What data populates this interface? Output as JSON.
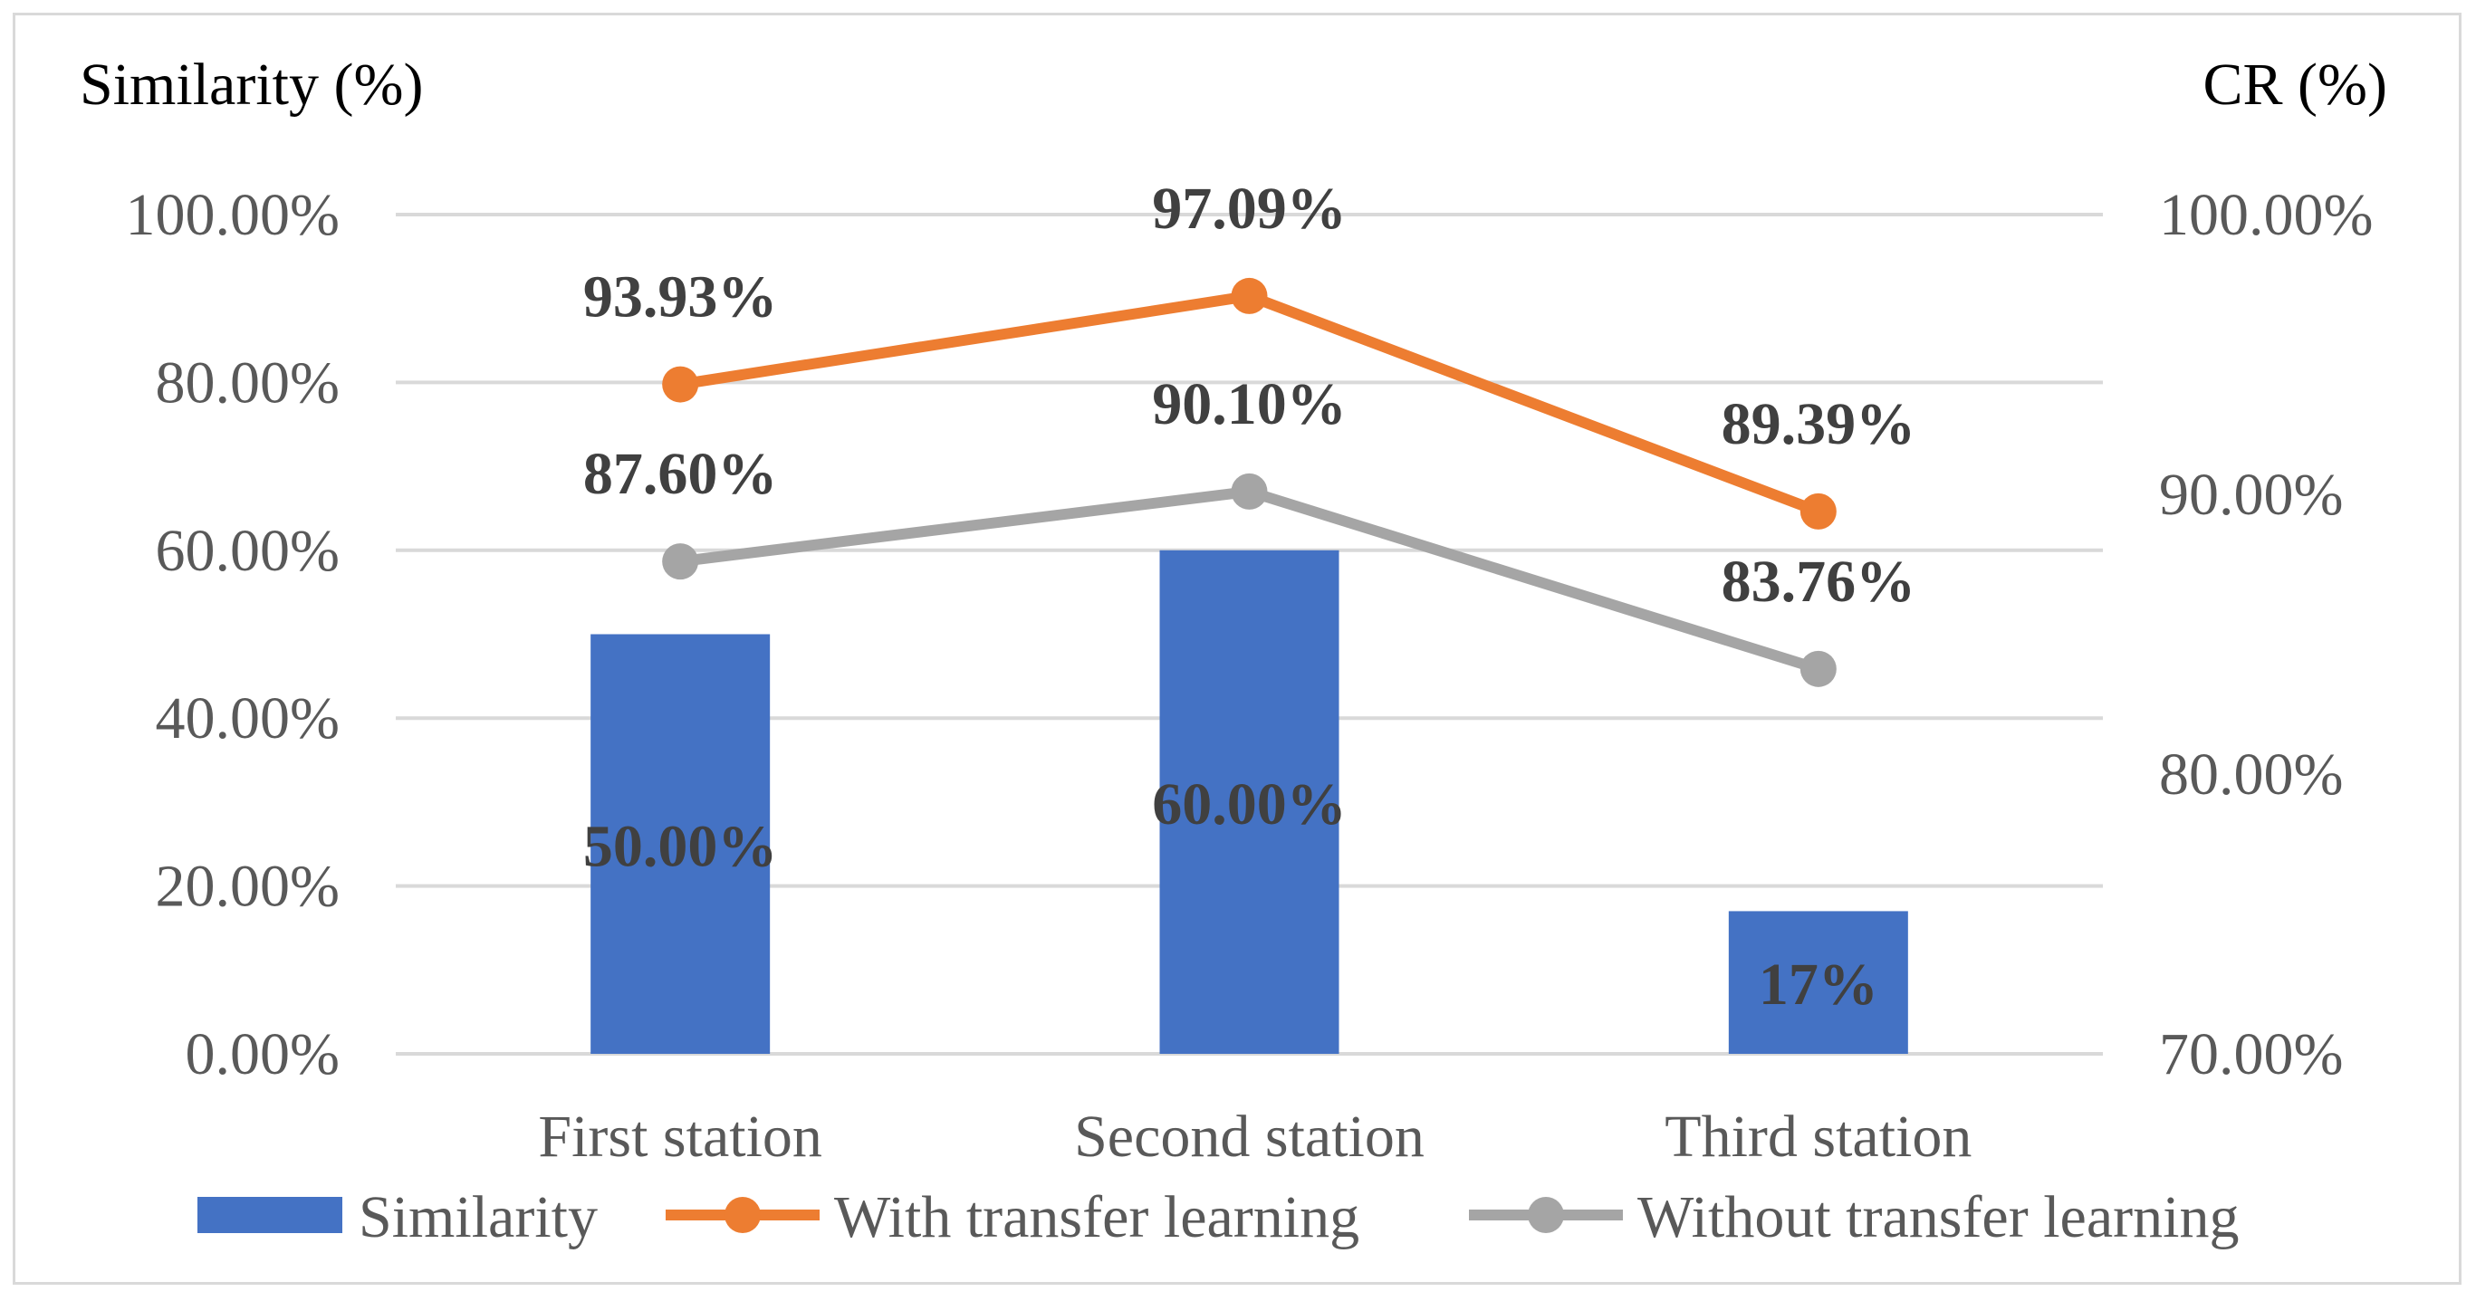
{
  "chart_data": {
    "type": "bar",
    "categories": [
      "First station",
      "Second station",
      "Third station"
    ],
    "left_axis": {
      "title": "Similarity (%)",
      "ylim": [
        0,
        100
      ],
      "ticks": [
        "0.00%",
        "20.00%",
        "40.00%",
        "60.00%",
        "80.00%",
        "100.00%"
      ]
    },
    "right_axis": {
      "title": "CR (%)",
      "ylim": [
        70,
        100
      ],
      "ticks": [
        "70.00%",
        "80.00%",
        "90.00%",
        "100.00%"
      ]
    },
    "series": [
      {
        "name": "Similarity",
        "type": "bar",
        "axis": "left",
        "color": "#4472c4",
        "values": [
          50,
          60,
          17
        ],
        "labels": [
          "50.00%",
          "60.00%",
          "17%"
        ]
      },
      {
        "name": "With transfer learning",
        "type": "line",
        "axis": "right",
        "color": "#ed7d31",
        "values": [
          93.93,
          97.09,
          89.39
        ],
        "labels": [
          "93.93%",
          "97.09%",
          "89.39%"
        ]
      },
      {
        "name": "Without transfer learning",
        "type": "line",
        "axis": "right",
        "color": "#a5a5a5",
        "values": [
          87.6,
          90.1,
          83.76
        ],
        "labels": [
          "87.60%",
          "90.10%",
          "83.76%"
        ]
      }
    ],
    "grid": true,
    "legend": "bottom"
  }
}
